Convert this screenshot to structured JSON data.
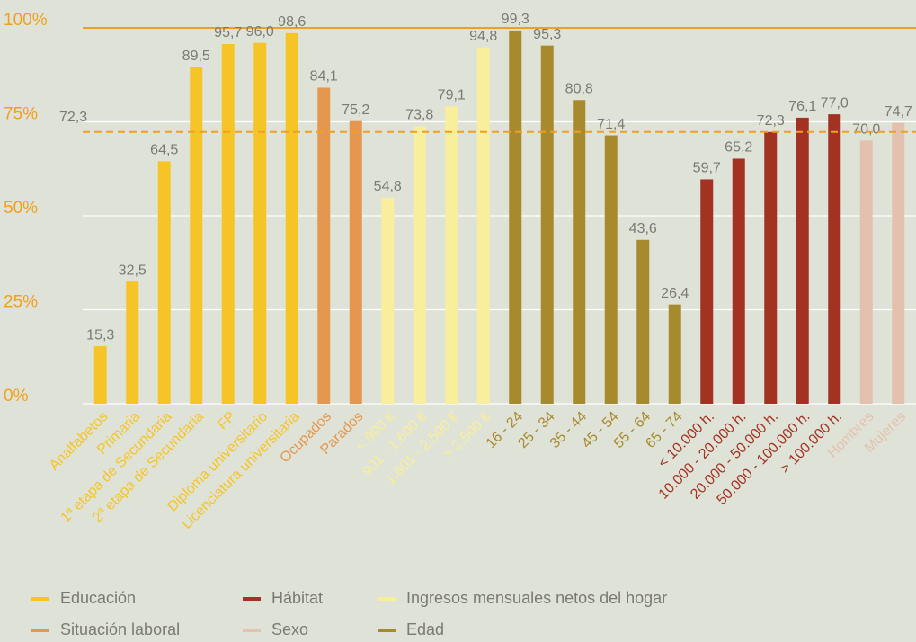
{
  "chart_data": {
    "type": "bar",
    "categories": [
      "Analfabetos",
      "Primaria",
      "1ª etapa de Secundaria",
      "2ª etapa de Secundaria",
      "FP",
      "Diploma universitario",
      "Licenciatura universitaria",
      "Ocupados",
      "Parados",
      "< 900 €",
      "901 - 1.600 €",
      "1.601 - 2.500 €",
      "> 2.500 €",
      "16 - 24",
      "25 - 34",
      "35 - 44",
      "45 - 54",
      "55 - 64",
      "65 - 74",
      "< 10.000 h.",
      "10.000 - 20.000 h.",
      "20.000 - 50.000 h.",
      "50.000 - 100.000 h.",
      "> 100.000 h.",
      "Hombres",
      "Mujeres"
    ],
    "series": [
      {
        "name": "Educación",
        "color": "#f5c426",
        "values": [
          15.3,
          32.5,
          64.5,
          89.5,
          95.7,
          96.0,
          98.6,
          null,
          null,
          null,
          null,
          null,
          null,
          null,
          null,
          null,
          null,
          null,
          null,
          null,
          null,
          null,
          null,
          null,
          null,
          null
        ],
        "value_labels": [
          "15,3",
          "32,5",
          "64,5",
          "89,5",
          "95,7",
          "96,0",
          "98,6",
          null,
          null,
          null,
          null,
          null,
          null,
          null,
          null,
          null,
          null,
          null,
          null,
          null,
          null,
          null,
          null,
          null,
          null,
          null
        ]
      },
      {
        "name": "Hábitat",
        "color": "#a33222",
        "values": [
          null,
          null,
          null,
          null,
          null,
          null,
          null,
          null,
          null,
          null,
          null,
          null,
          null,
          null,
          null,
          null,
          null,
          null,
          null,
          59.7,
          65.2,
          72.3,
          76.1,
          77.0,
          null,
          null
        ],
        "value_labels": [
          null,
          null,
          null,
          null,
          null,
          null,
          null,
          null,
          null,
          null,
          null,
          null,
          null,
          null,
          null,
          null,
          null,
          null,
          null,
          "59,7",
          "65,2",
          "72,3",
          "76,1",
          "77,0",
          null,
          null
        ]
      },
      {
        "name": "Ingresos mensuales netos del hogar",
        "color": "#f8ee9c",
        "values": [
          null,
          null,
          null,
          null,
          null,
          null,
          null,
          null,
          null,
          54.8,
          73.8,
          79.1,
          94.8,
          null,
          null,
          null,
          null,
          null,
          null,
          null,
          null,
          null,
          null,
          null,
          null,
          null
        ],
        "value_labels": [
          null,
          null,
          null,
          null,
          null,
          null,
          null,
          null,
          null,
          "54,8",
          "73,8",
          "79,1",
          "94,8",
          null,
          null,
          null,
          null,
          null,
          null,
          null,
          null,
          null,
          null,
          null,
          null,
          null
        ]
      },
      {
        "name": "Situación laboral",
        "color": "#e5974f",
        "values": [
          null,
          null,
          null,
          null,
          null,
          null,
          null,
          84.1,
          75.2,
          null,
          null,
          null,
          null,
          null,
          null,
          null,
          null,
          null,
          null,
          null,
          null,
          null,
          null,
          null,
          null,
          null
        ],
        "value_labels": [
          null,
          null,
          null,
          null,
          null,
          null,
          null,
          "84,1",
          "75,2",
          null,
          null,
          null,
          null,
          null,
          null,
          null,
          null,
          null,
          null,
          null,
          null,
          null,
          null,
          null,
          null,
          null
        ]
      },
      {
        "name": "Sexo",
        "color": "#e4c1ae",
        "values": [
          null,
          null,
          null,
          null,
          null,
          null,
          null,
          null,
          null,
          null,
          null,
          null,
          null,
          null,
          null,
          null,
          null,
          null,
          null,
          null,
          null,
          null,
          null,
          null,
          70.0,
          74.7
        ],
        "value_labels": [
          null,
          null,
          null,
          null,
          null,
          null,
          null,
          null,
          null,
          null,
          null,
          null,
          null,
          null,
          null,
          null,
          null,
          null,
          null,
          null,
          null,
          null,
          null,
          null,
          "70,0",
          "74,7"
        ]
      },
      {
        "name": "Edad",
        "color": "#a88a2e",
        "values": [
          null,
          null,
          null,
          null,
          null,
          null,
          null,
          null,
          null,
          null,
          null,
          null,
          null,
          99.3,
          95.3,
          80.8,
          71.4,
          43.6,
          26.4,
          null,
          null,
          null,
          null,
          null,
          null,
          null
        ],
        "value_labels": [
          null,
          null,
          null,
          null,
          null,
          null,
          null,
          null,
          null,
          null,
          null,
          null,
          null,
          "99,3",
          "95,3",
          "80,8",
          "71,4",
          "43,6",
          "26,4",
          null,
          null,
          null,
          null,
          null,
          null,
          null
        ]
      }
    ],
    "reference": {
      "value": 72.3,
      "label": "72,3",
      "color": "#f0a020"
    },
    "ylim": [
      0,
      100
    ],
    "yticks": [
      {
        "value": 0,
        "label": "0%"
      },
      {
        "value": 25,
        "label": "25%"
      },
      {
        "value": 50,
        "label": "50%"
      },
      {
        "value": 75,
        "label": "75%"
      },
      {
        "value": 100,
        "label": "100%"
      }
    ],
    "grid": true
  }
}
